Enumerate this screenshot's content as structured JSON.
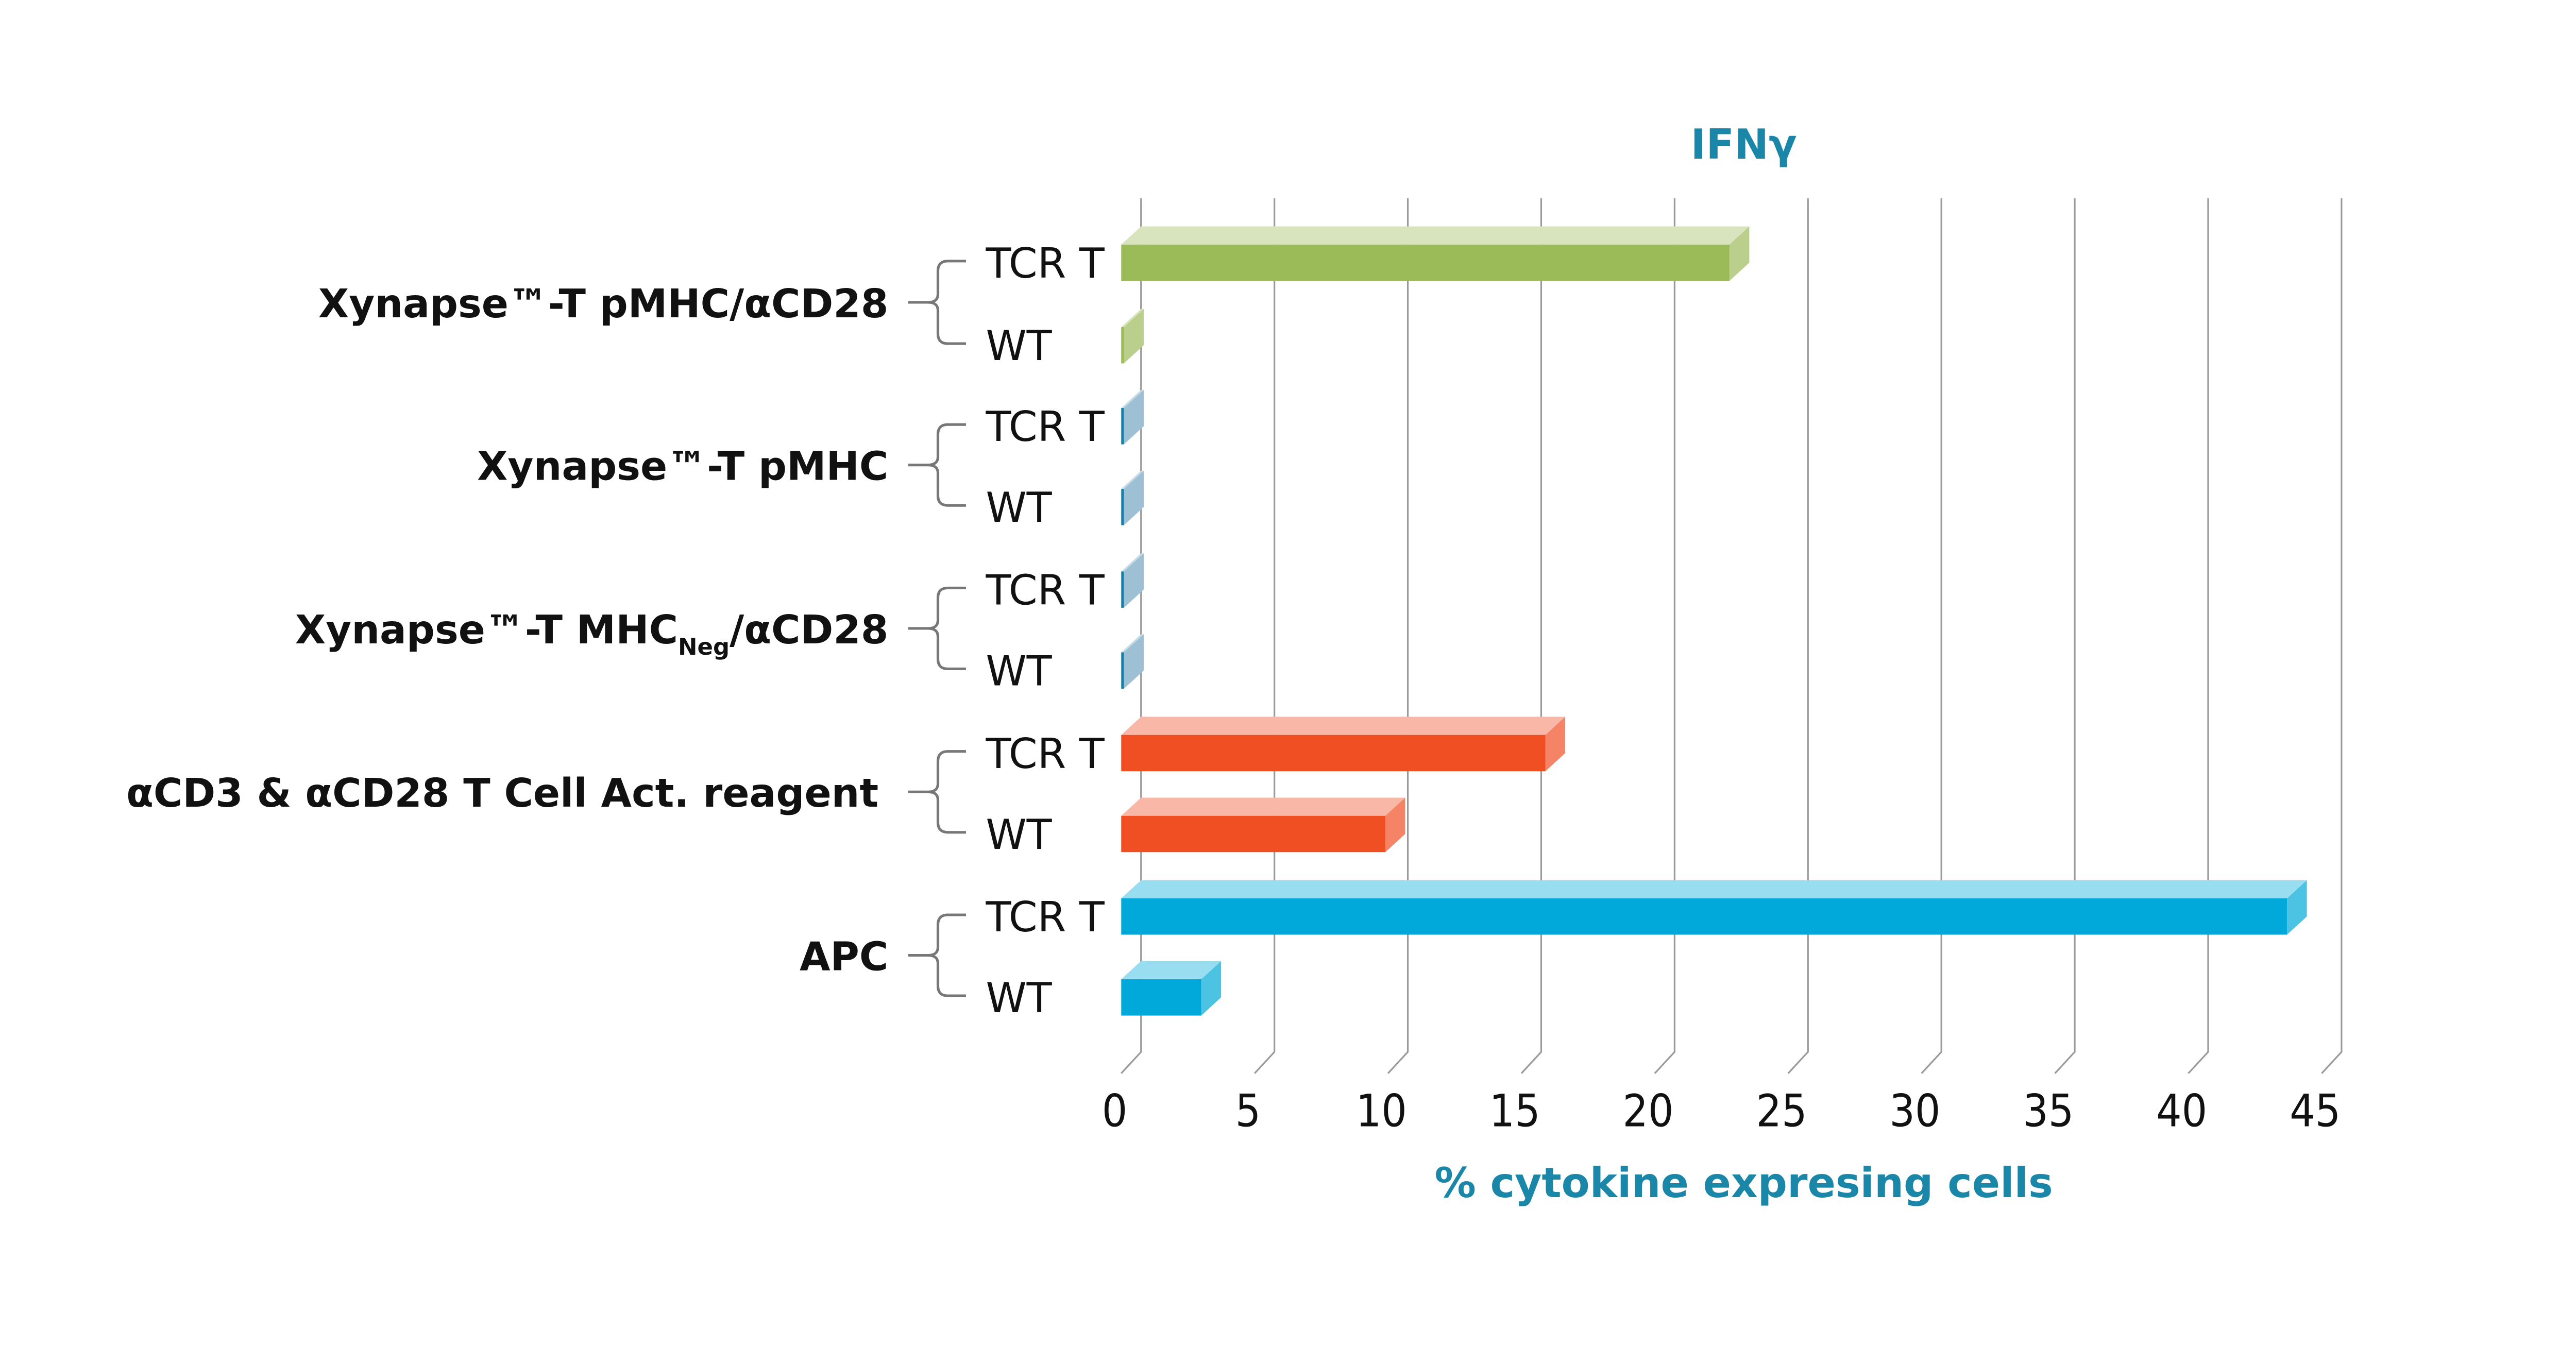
{
  "chart_data": {
    "type": "bar",
    "orientation": "horizontal",
    "title": "IFNγ",
    "xlabel": "% cytokine expresing cells",
    "xlim": [
      0,
      45
    ],
    "xticks": [
      "0",
      "5",
      "10",
      "15",
      "20",
      "25",
      "30",
      "35",
      "40",
      "45"
    ],
    "grid": true,
    "groups": [
      {
        "label": "Xynapse™-T  pMHC/αCD28",
        "color": "#9bbb59",
        "bars": [
          {
            "label": "TCR T",
            "value": 22.8
          },
          {
            "label": "WT",
            "value": 0.1
          }
        ]
      },
      {
        "label": "Xynapse™-T  pMHC",
        "color": "#73a5c2",
        "bars": [
          {
            "label": "TCR T",
            "value": 0.1
          },
          {
            "label": "WT",
            "value": 0.1
          }
        ]
      },
      {
        "label": "Xynapse™-T  MHC",
        "label_sub": "Neg",
        "label_suffix": "/αCD28",
        "color": "#73a5c2",
        "bars": [
          {
            "label": "TCR T",
            "value": 0.1
          },
          {
            "label": "WT",
            "value": 0.1
          }
        ]
      },
      {
        "label": "αCD3 & αCD28 T Cell Act. reagent",
        "color": "#f04e23",
        "bars": [
          {
            "label": "TCR T",
            "value": 15.9
          },
          {
            "label": "WT",
            "value": 9.9
          }
        ]
      },
      {
        "label": "APC",
        "color": "#00a9d9",
        "bars": [
          {
            "label": "TCR T",
            "value": 43.7
          },
          {
            "label": "WT",
            "value": 3.0
          }
        ]
      }
    ]
  }
}
